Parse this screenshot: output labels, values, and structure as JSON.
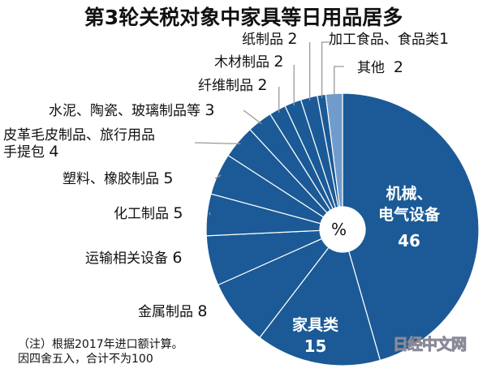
{
  "chart_data": {
    "type": "pie",
    "title": "第3轮关税对象中家具等日用品居多",
    "center_label": "%",
    "slices": [
      {
        "label": "机械、电气设备",
        "value": 46
      },
      {
        "label": "家具类",
        "value": 15
      },
      {
        "label": "金属制品",
        "value": 8
      },
      {
        "label": "运输相关设备",
        "value": 6
      },
      {
        "label": "化工制品",
        "value": 5
      },
      {
        "label": "塑料、橡胶制品",
        "value": 5
      },
      {
        "label": "皮革毛皮制品、旅行用品手提包",
        "value": 4
      },
      {
        "label": "水泥、陶瓷、玻璃制品等",
        "value": 3
      },
      {
        "label": "纤维制品",
        "value": 2
      },
      {
        "label": "木材制品",
        "value": 2
      },
      {
        "label": "纸制品",
        "value": 2
      },
      {
        "label": "加工食品、食品类",
        "value": 1
      },
      {
        "label": "其他",
        "value": 2
      }
    ],
    "colors": {
      "main": "#1b5a96",
      "other": "#6f9ccc",
      "separator": "#ffffff"
    },
    "start": "12 o'clock, clockwise"
  },
  "labels": {
    "machinery_1": "机械、",
    "machinery_2": "电气设备",
    "machinery_v": "46",
    "furniture": "家具类",
    "furniture_v": "15",
    "metal": "金属制品",
    "metal_v": "8",
    "transport": "运输相关设备",
    "transport_v": "6",
    "chemical": "化工制品",
    "chemical_v": "5",
    "plastic": "塑料、橡胶制品",
    "plastic_v": "5",
    "leather_1": "皮革毛皮制品、旅行用品",
    "leather_2": "手提包",
    "leather_v": "4",
    "cement": "水泥、陶瓷、玻璃制品等",
    "cement_v": "3",
    "fiber": "纤维制品",
    "fiber_v": "2",
    "wood": "木材制品",
    "wood_v": "2",
    "paper": "纸制品",
    "paper_v": "2",
    "food": "加工食品、食品类",
    "food_v": "1",
    "other": "其他",
    "other_v": "2"
  },
  "note": {
    "line1": "（注）根据2017年进口额计算。",
    "line2": "因四舍五入，合计不为100"
  },
  "watermark": "日经中文网"
}
